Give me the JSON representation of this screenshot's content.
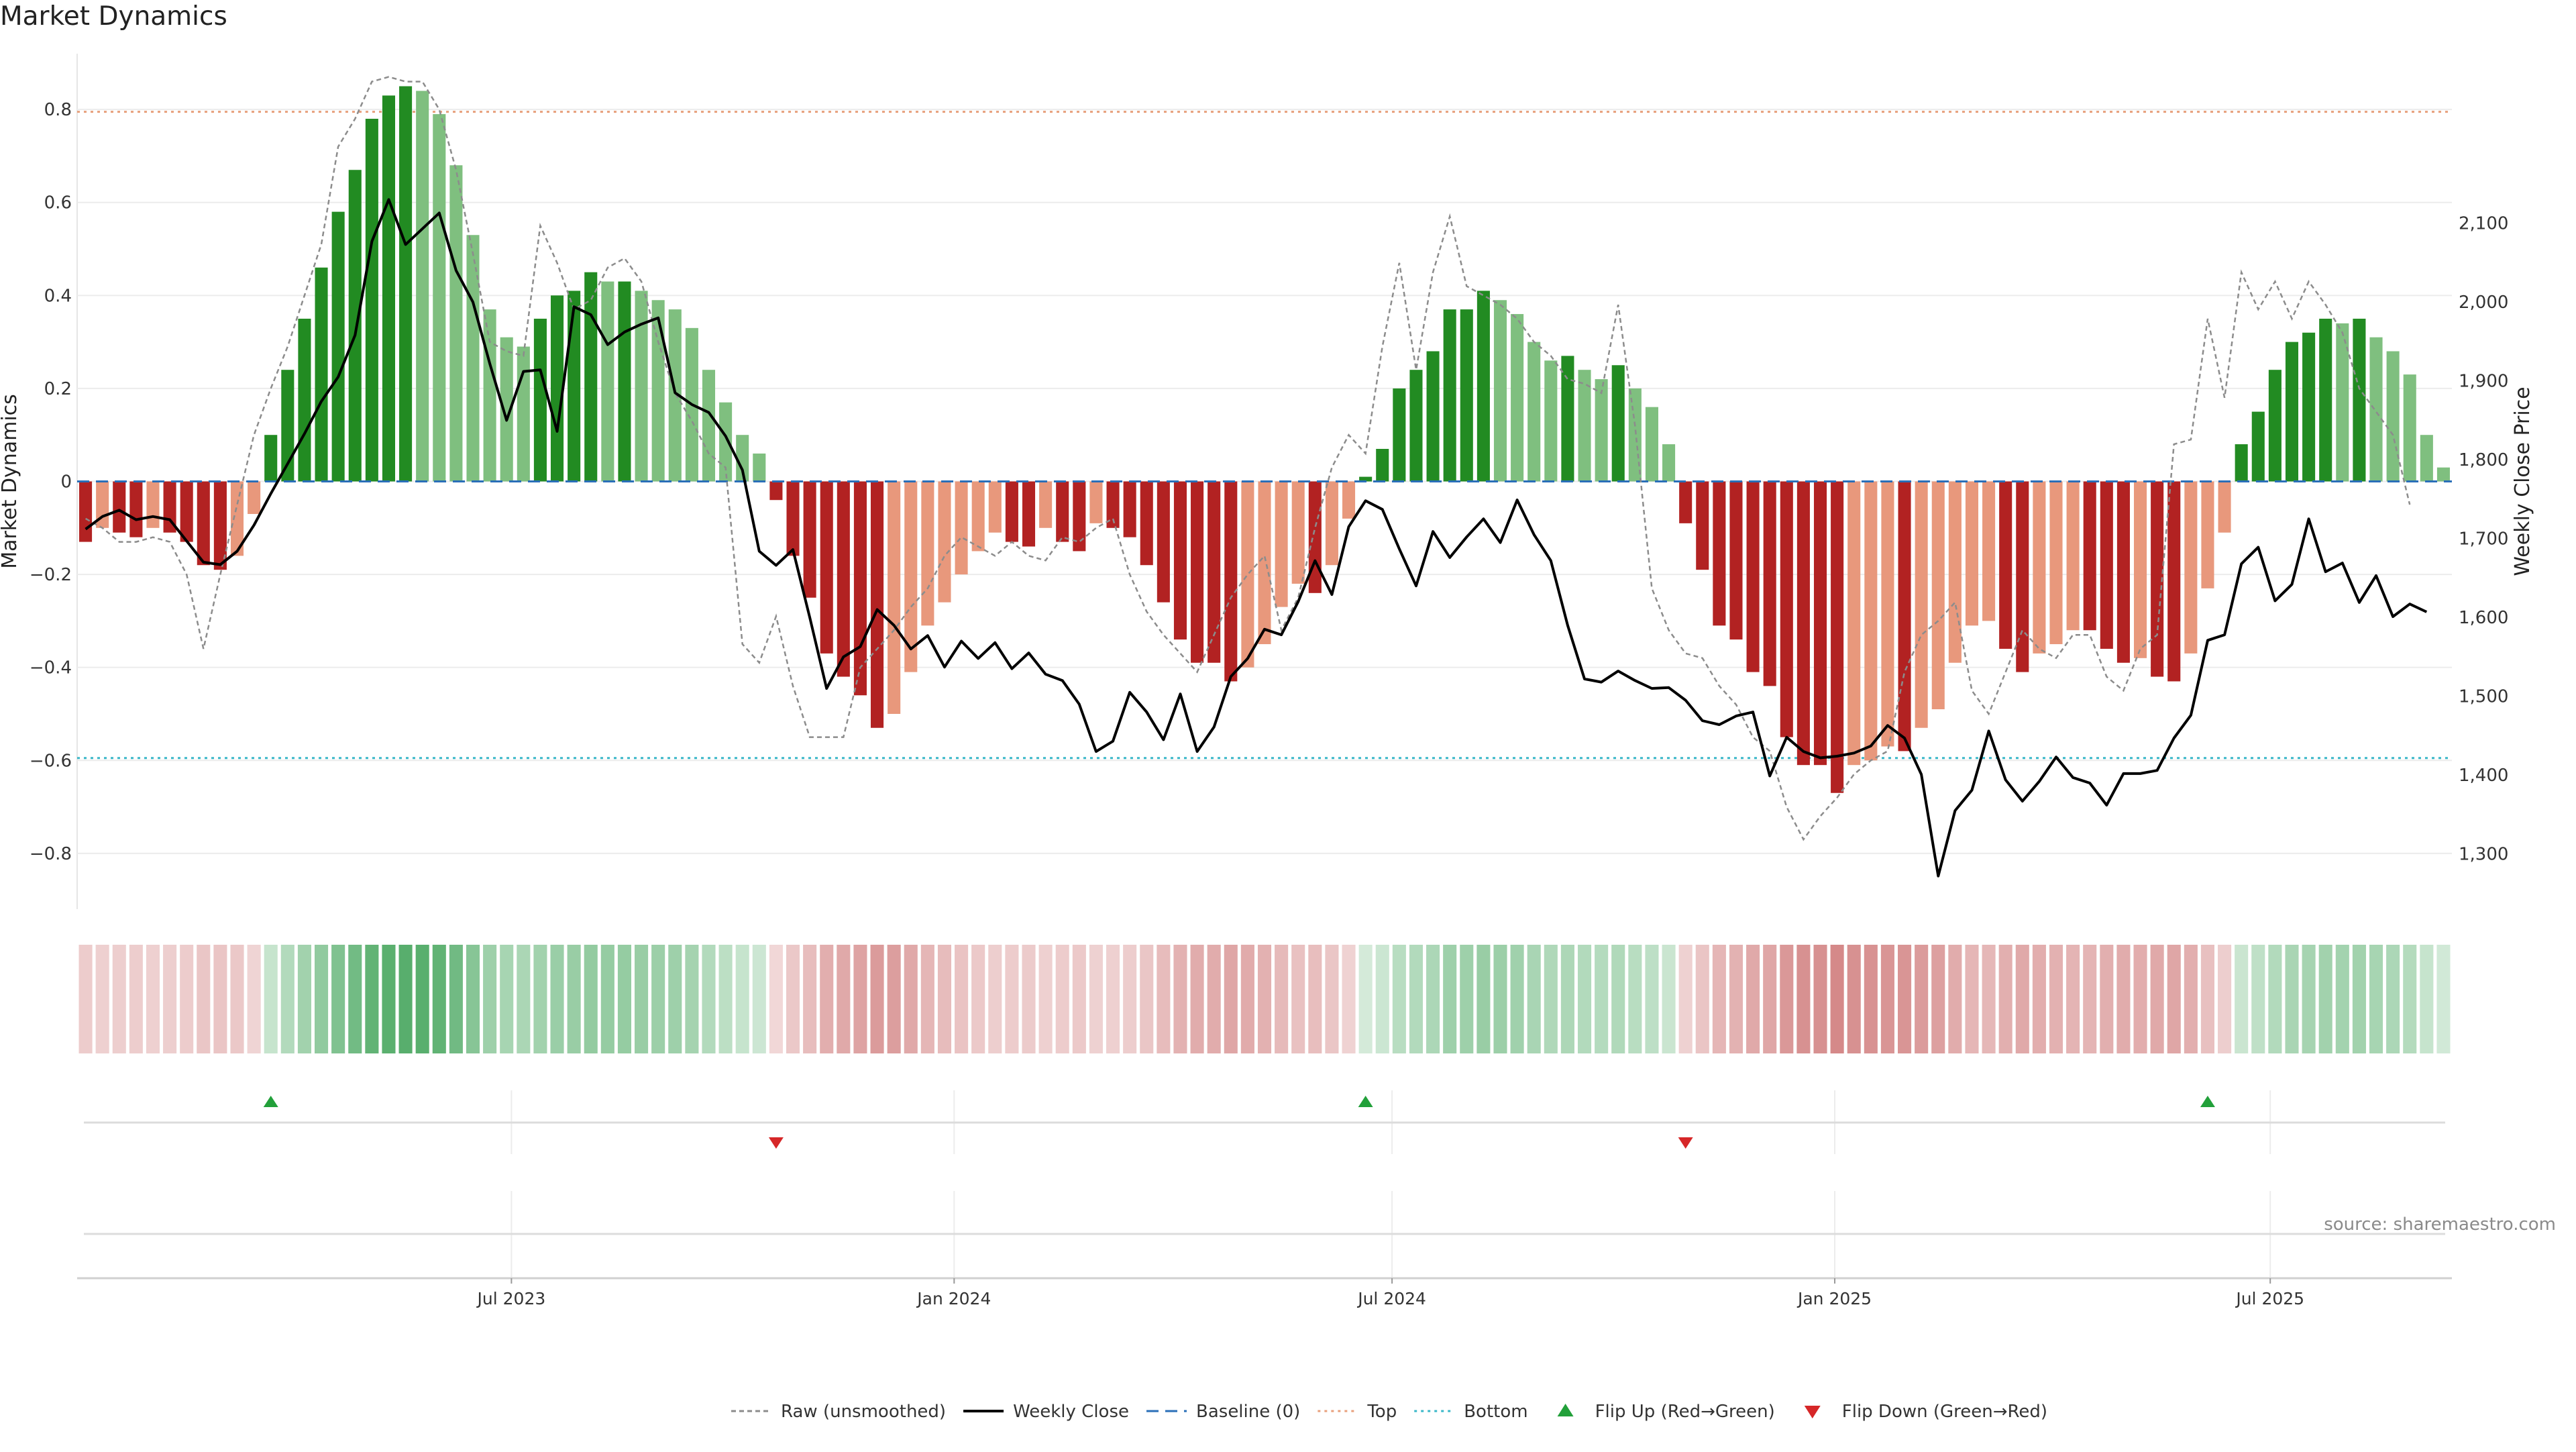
{
  "title": "Market Dynamics",
  "source": "source: sharemaestro.com",
  "colors": {
    "strong_green": "#228b22",
    "light_green": "#7fbf7f",
    "strong_red": "#b22222",
    "light_red": "#e8987c",
    "top_line": "#e8a07c",
    "bottom_line": "#3ab7c8",
    "baseline": "#2a6fb8",
    "raw": "#8c8c8c",
    "close": "#000000",
    "flip_up": "#22a03a",
    "flip_down": "#d62728",
    "heat_green": "#2e9a48",
    "heat_red": "#c05050"
  },
  "chart_data": {
    "type": "bar",
    "title": "Market Dynamics",
    "ylabel": "Market Dynamics",
    "y2label": "Weekly Close Price",
    "ylim": [
      -0.92,
      0.92
    ],
    "y2lim": [
      1230,
      2315
    ],
    "yticks": [
      -0.8,
      -0.6,
      -0.4,
      -0.2,
      0,
      0.2,
      0.4,
      0.6,
      0.8
    ],
    "yticklabels": [
      "−0.8",
      "−0.6",
      "−0.4",
      "−0.2",
      "0",
      "0.2",
      "0.4",
      "0.6",
      "0.8"
    ],
    "y2ticks": [
      1300,
      1400,
      1500,
      1600,
      1700,
      1800,
      1900,
      2000,
      2100
    ],
    "y2ticklabels": [
      "1,300",
      "1,400",
      "1,500",
      "1,600",
      "1,700",
      "1,800",
      "1,900",
      "2,000",
      "2,100"
    ],
    "x_start": "2023-01-05",
    "x_end": "2025-10-30",
    "x_period_days": 7,
    "xticks": [
      {
        "date": "2023-07-01",
        "label": "Jul 2023"
      },
      {
        "date": "2024-01-01",
        "label": "Jan 2024"
      },
      {
        "date": "2024-07-01",
        "label": "Jul 2024"
      },
      {
        "date": "2025-01-01",
        "label": "Jan 2025"
      },
      {
        "date": "2025-07-01",
        "label": "Jul 2025"
      }
    ],
    "top_threshold": 0.795,
    "bottom_threshold": -0.595,
    "baseline": 0,
    "smoothed": [
      -0.13,
      -0.1,
      -0.11,
      -0.12,
      -0.1,
      -0.11,
      -0.13,
      -0.18,
      -0.19,
      -0.16,
      -0.07,
      0.1,
      0.24,
      0.35,
      0.46,
      0.58,
      0.67,
      0.78,
      0.83,
      0.85,
      0.84,
      0.79,
      0.68,
      0.53,
      0.37,
      0.31,
      0.29,
      0.35,
      0.4,
      0.41,
      0.45,
      0.43,
      0.43,
      0.41,
      0.39,
      0.37,
      0.33,
      0.24,
      0.17,
      0.1,
      0.06,
      -0.04,
      -0.16,
      -0.25,
      -0.37,
      -0.42,
      -0.46,
      -0.53,
      -0.5,
      -0.41,
      -0.31,
      -0.26,
      -0.2,
      -0.15,
      -0.11,
      -0.13,
      -0.14,
      -0.1,
      -0.13,
      -0.15,
      -0.09,
      -0.1,
      -0.12,
      -0.18,
      -0.26,
      -0.34,
      -0.39,
      -0.39,
      -0.43,
      -0.4,
      -0.35,
      -0.27,
      -0.22,
      -0.24,
      -0.18,
      -0.08,
      0.01,
      0.07,
      0.2,
      0.24,
      0.28,
      0.37,
      0.37,
      0.41,
      0.39,
      0.36,
      0.3,
      0.26,
      0.27,
      0.24,
      0.22,
      0.25,
      0.2,
      0.16,
      0.08,
      -0.09,
      -0.19,
      -0.31,
      -0.34,
      -0.41,
      -0.44,
      -0.55,
      -0.61,
      -0.61,
      -0.67,
      -0.61,
      -0.6,
      -0.57,
      -0.58,
      -0.53,
      -0.49,
      -0.39,
      -0.31,
      -0.3,
      -0.36,
      -0.41,
      -0.37,
      -0.35,
      -0.32,
      -0.32,
      -0.36,
      -0.39,
      -0.38,
      -0.42,
      -0.43,
      -0.37,
      -0.23,
      -0.11,
      0.08,
      0.15,
      0.24,
      0.3,
      0.32,
      0.35,
      0.34,
      0.35,
      0.31,
      0.28,
      0.23,
      0.1,
      0.03
    ],
    "raw": [
      -0.08,
      -0.1,
      -0.13,
      -0.13,
      -0.12,
      -0.13,
      -0.2,
      -0.36,
      -0.2,
      -0.05,
      0.1,
      0.2,
      0.29,
      0.4,
      0.51,
      0.72,
      0.78,
      0.86,
      0.87,
      0.86,
      0.86,
      0.8,
      0.67,
      0.49,
      0.3,
      0.28,
      0.27,
      0.55,
      0.47,
      0.37,
      0.39,
      0.46,
      0.48,
      0.43,
      0.3,
      0.19,
      0.13,
      0.06,
      0.03,
      -0.35,
      -0.39,
      -0.29,
      -0.44,
      -0.55,
      -0.55,
      -0.55,
      -0.4,
      -0.36,
      -0.32,
      -0.27,
      -0.23,
      -0.16,
      -0.12,
      -0.14,
      -0.16,
      -0.13,
      -0.16,
      -0.17,
      -0.12,
      -0.13,
      -0.1,
      -0.08,
      -0.2,
      -0.28,
      -0.33,
      -0.37,
      -0.41,
      -0.33,
      -0.25,
      -0.2,
      -0.16,
      -0.32,
      -0.25,
      -0.1,
      0.03,
      0.1,
      0.06,
      0.29,
      0.47,
      0.24,
      0.45,
      0.57,
      0.42,
      0.4,
      0.38,
      0.35,
      0.3,
      0.27,
      0.22,
      0.21,
      0.19,
      0.38,
      0.12,
      -0.23,
      -0.32,
      -0.37,
      -0.38,
      -0.44,
      -0.48,
      -0.55,
      -0.58,
      -0.7,
      -0.77,
      -0.72,
      -0.68,
      -0.63,
      -0.6,
      -0.58,
      -0.41,
      -0.33,
      -0.3,
      -0.26,
      -0.45,
      -0.5,
      -0.41,
      -0.32,
      -0.36,
      -0.38,
      -0.33,
      -0.33,
      -0.42,
      -0.45,
      -0.36,
      -0.33,
      0.08,
      0.09,
      0.35,
      0.18,
      0.45,
      0.37,
      0.43,
      0.35,
      0.43,
      0.38,
      0.32,
      0.2,
      0.15,
      0.1,
      -0.05
    ],
    "close": [
      1712,
      1728,
      1736,
      1724,
      1728,
      1724,
      1697,
      1670,
      1667,
      1684,
      1717,
      1757,
      1795,
      1833,
      1874,
      1905,
      1958,
      2077,
      2130,
      2073,
      2093,
      2113,
      2040,
      2000,
      1922,
      1850,
      1912,
      1914,
      1836,
      1994,
      1984,
      1946,
      1962,
      1972,
      1980,
      1885,
      1870,
      1860,
      1830,
      1787,
      1684,
      1666,
      1686,
      1600,
      1510,
      1550,
      1563,
      1610,
      1590,
      1560,
      1577,
      1537,
      1570,
      1548,
      1568,
      1535,
      1555,
      1528,
      1520,
      1490,
      1430,
      1443,
      1505,
      1480,
      1445,
      1503,
      1430,
      1461,
      1525,
      1548,
      1585,
      1578,
      1620,
      1672,
      1629,
      1715,
      1748,
      1737,
      1687,
      1640,
      1709,
      1676,
      1702,
      1725,
      1695,
      1749,
      1705,
      1672,
      1590,
      1522,
      1518,
      1532,
      1520,
      1510,
      1511,
      1495,
      1469,
      1464,
      1475,
      1480,
      1399,
      1448,
      1430,
      1422,
      1424,
      1428,
      1437,
      1463,
      1447,
      1401,
      1272,
      1355,
      1381,
      1456,
      1394,
      1367,
      1392,
      1423,
      1397,
      1390,
      1362,
      1402,
      1402,
      1406,
      1447,
      1476,
      1571,
      1578,
      1668,
      1689,
      1621,
      1642,
      1725,
      1658,
      1669,
      1619,
      1653,
      1601,
      1617,
      1607
    ],
    "flips": [
      {
        "index": 11,
        "direction": "up"
      },
      {
        "index": 41,
        "direction": "down"
      },
      {
        "index": 76,
        "direction": "up"
      },
      {
        "index": 95,
        "direction": "down"
      },
      {
        "index": 126,
        "direction": "up"
      }
    ],
    "legend": [
      {
        "label": "Raw (unsmoothed)",
        "style": "raw"
      },
      {
        "label": "Weekly Close",
        "style": "close"
      },
      {
        "label": "Baseline (0)",
        "style": "baseline"
      },
      {
        "label": "Top",
        "style": "top"
      },
      {
        "label": "Bottom",
        "style": "bottom"
      },
      {
        "label": "Flip Up (Red→Green)",
        "style": "flip_up"
      },
      {
        "label": "Flip Down (Green→Red)",
        "style": "flip_down"
      }
    ],
    "legend_position": "bottom-center",
    "grid": true
  }
}
